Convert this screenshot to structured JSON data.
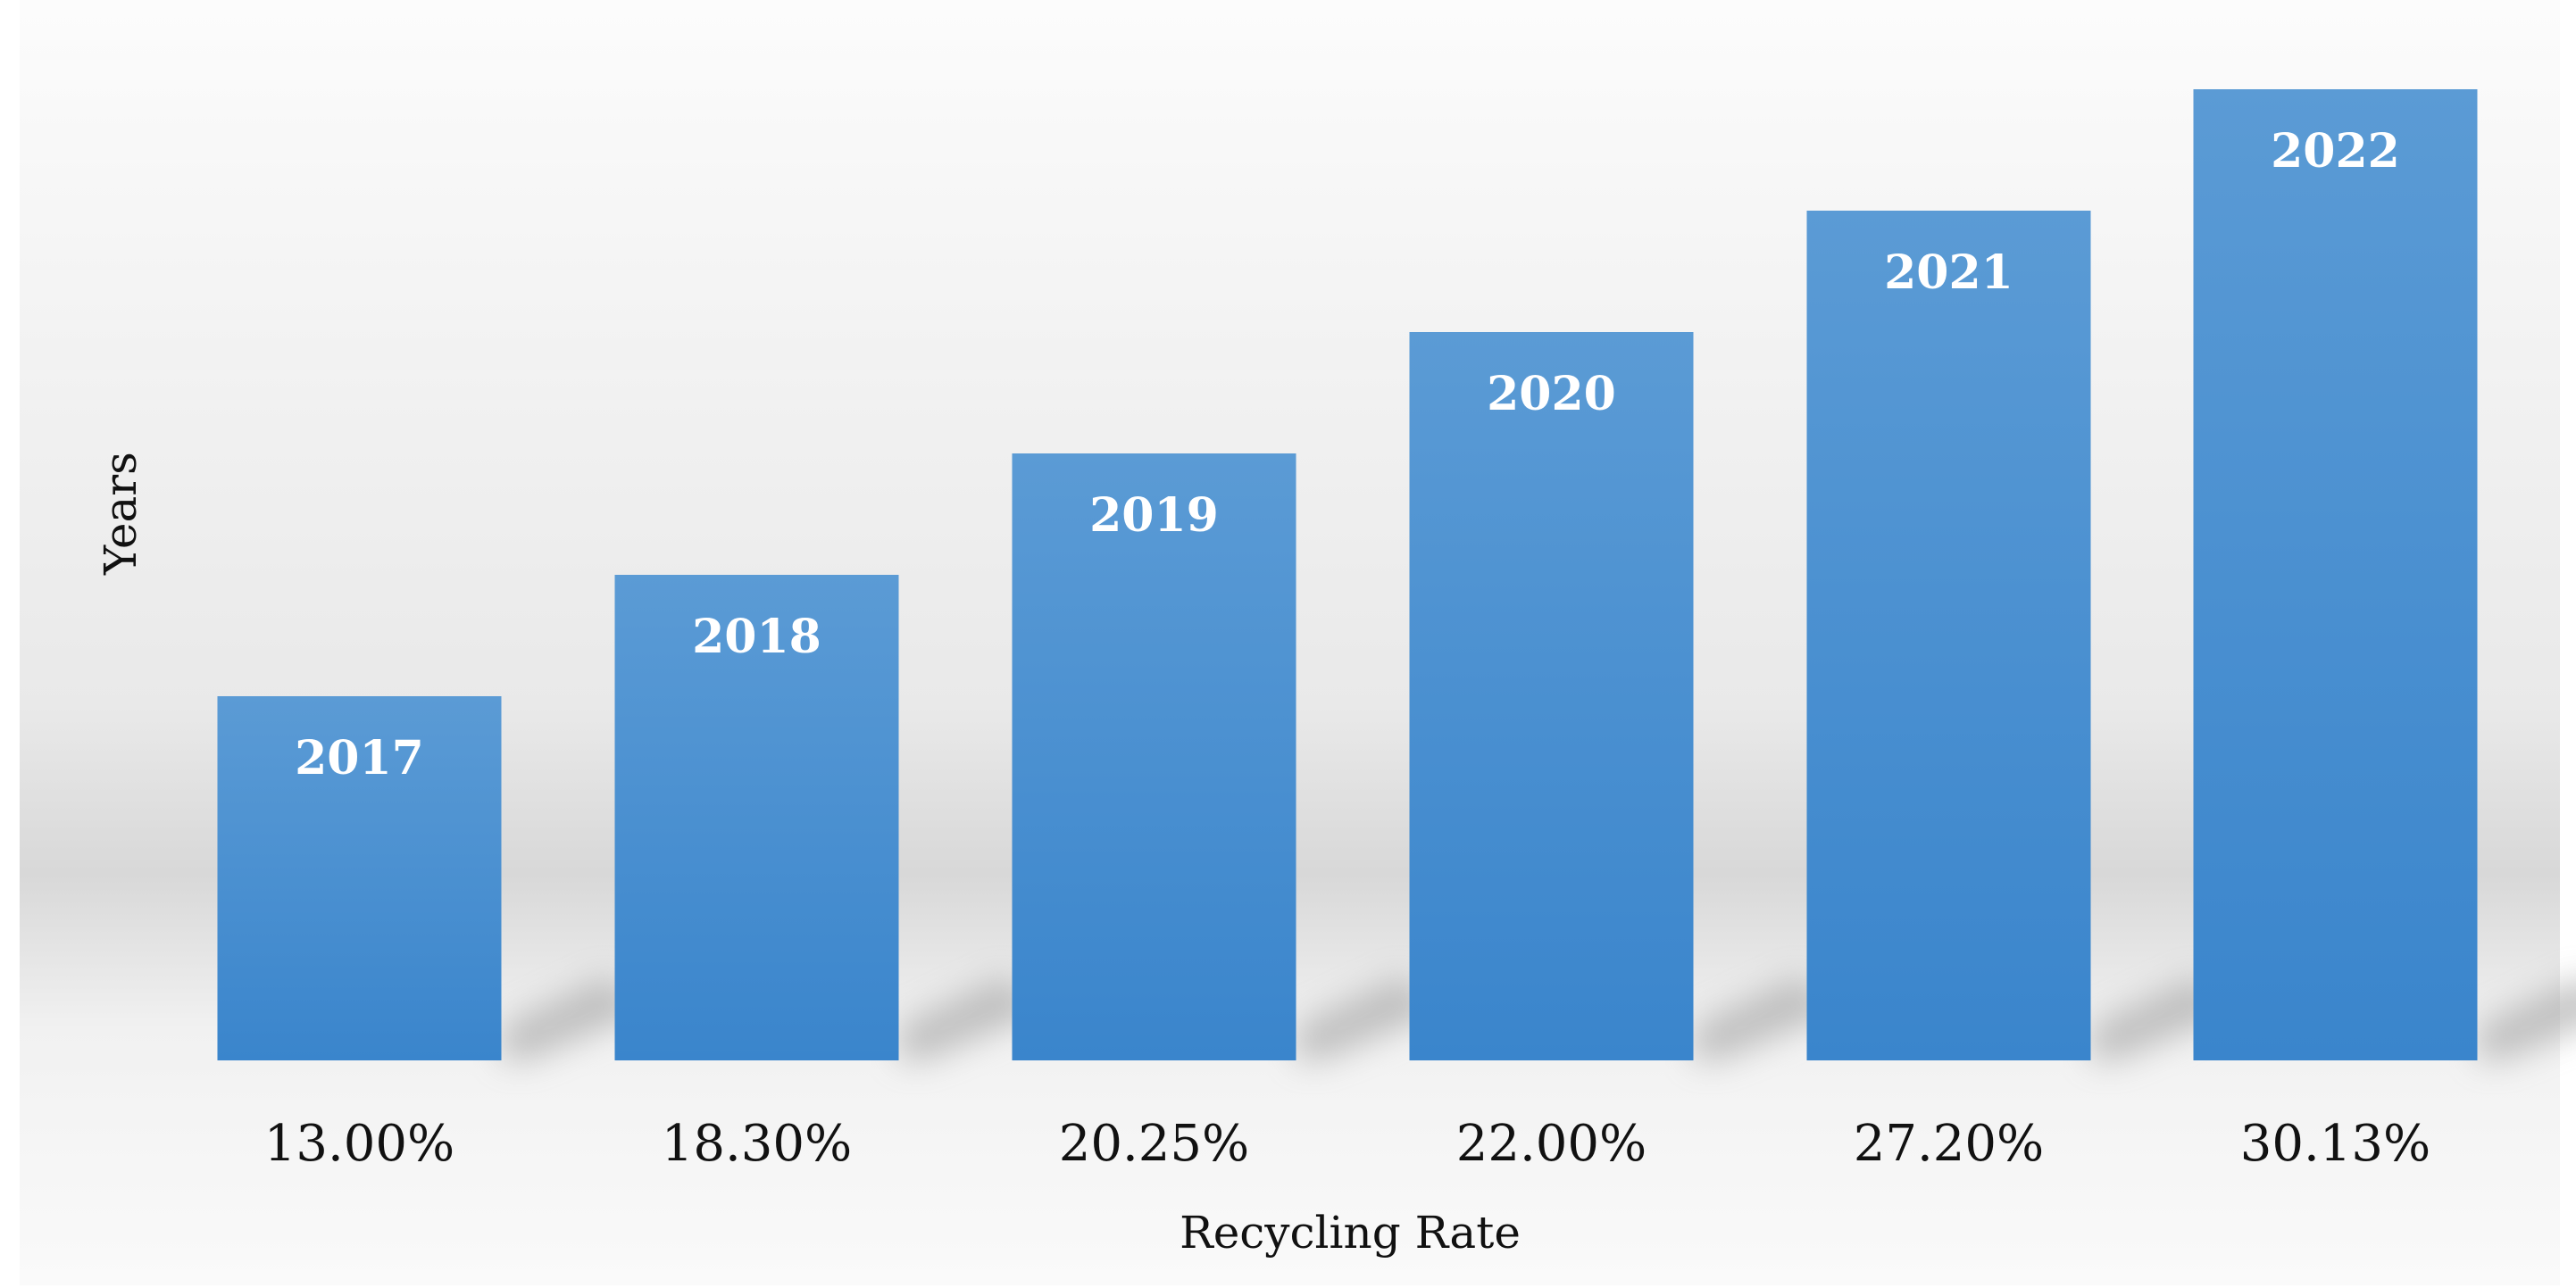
{
  "chart_data": {
    "type": "bar",
    "categories": [
      "13.00%",
      "18.30%",
      "20.25%",
      "22.00%",
      "27.20%",
      "30.13%"
    ],
    "values": [
      2017,
      2018,
      2019,
      2020,
      2021,
      2022
    ],
    "data_labels": [
      "2017",
      "2018",
      "2019",
      "2020",
      "2021",
      "2022"
    ],
    "xlabel": "Recycling Rate",
    "ylabel": "Years",
    "ylim": [
      2014,
      2022
    ],
    "grid": false,
    "legend": "none",
    "colors": {
      "bar_top": "#5b9bd5",
      "bar_bottom": "#3a85cc",
      "background_top": "#fcfcfc",
      "background_band": "#dddddd",
      "shadow": "#9a9a9a"
    }
  }
}
